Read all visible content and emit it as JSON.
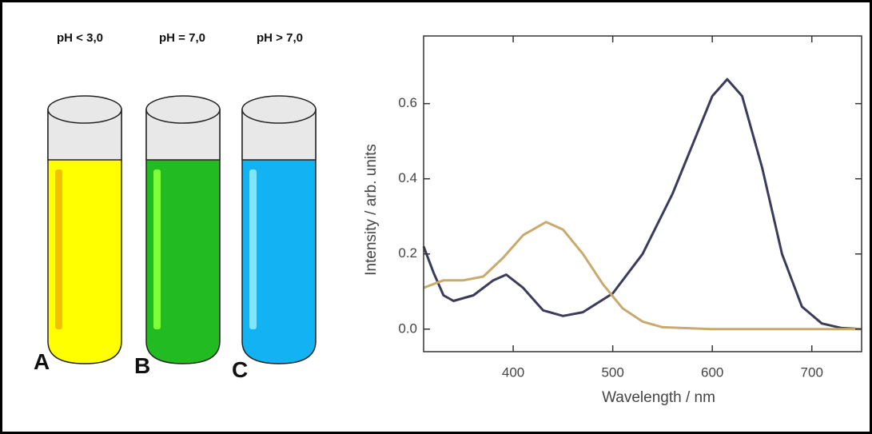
{
  "tubes": [
    {
      "ph": "pH < 3,0",
      "label": "A"
    },
    {
      "ph": "pH = 7,0",
      "label": "B"
    },
    {
      "ph": "pH  > 7,0",
      "label": "C"
    }
  ],
  "chart_data": {
    "type": "line",
    "xlabel": "Wavelength / nm",
    "ylabel": "Intensity / arb. units",
    "xlim": [
      310,
      750
    ],
    "ylim": [
      -0.06,
      0.78
    ],
    "xticks": [
      400,
      500,
      600,
      700
    ],
    "yticks": [
      {
        "value": 0,
        "label": "0.0"
      },
      0.2,
      0.4,
      0.6
    ],
    "series": [
      {
        "color": "#3b3b5c",
        "x": [
          310,
          320,
          330,
          340,
          360,
          380,
          393,
          410,
          430,
          450,
          470,
          500,
          530,
          560,
          580,
          600,
          615,
          630,
          650,
          670,
          690,
          710,
          730,
          750
        ],
        "values": [
          0.22,
          0.15,
          0.09,
          0.075,
          0.09,
          0.13,
          0.145,
          0.11,
          0.05,
          0.035,
          0.045,
          0.095,
          0.2,
          0.36,
          0.49,
          0.62,
          0.665,
          0.62,
          0.43,
          0.2,
          0.06,
          0.015,
          0.003,
          0
        ]
      },
      {
        "color": "#c9aa6e",
        "x": [
          310,
          330,
          350,
          370,
          390,
          410,
          433,
          450,
          470,
          490,
          510,
          530,
          550,
          600,
          750
        ],
        "values": [
          0.11,
          0.13,
          0.13,
          0.14,
          0.19,
          0.25,
          0.285,
          0.265,
          0.2,
          0.12,
          0.055,
          0.02,
          0.005,
          0,
          0
        ]
      }
    ]
  }
}
